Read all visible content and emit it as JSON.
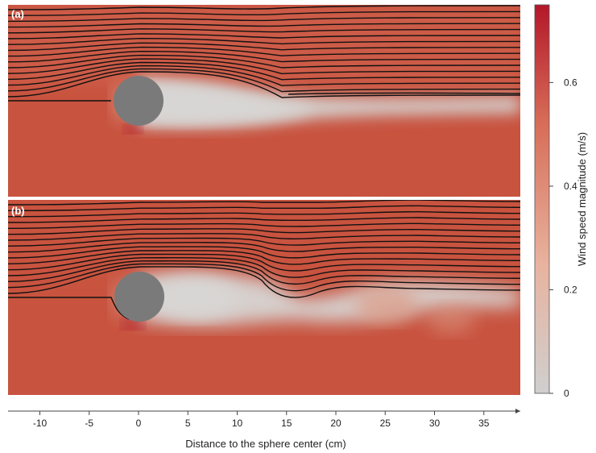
{
  "chart_data": {
    "type": "heatmap",
    "panels": [
      {
        "label": "(a)",
        "wake_streamlines": "smooth",
        "sphere_center_cm": 0,
        "sphere_radius_cm": 2.5
      },
      {
        "label": "(b)",
        "wake_streamlines": "oscillating",
        "sphere_center_cm": 0,
        "sphere_radius_cm": 2.5
      }
    ],
    "xlabel": "Distance to the sphere center (cm)",
    "x_ticks": [
      -10,
      -5,
      0,
      5,
      10,
      15,
      20,
      25,
      30,
      35
    ],
    "xlim": [
      -13.5,
      38
    ],
    "colorbar": {
      "label": "Wind speed magnitude (m/s)",
      "ticks": [
        0,
        0.2,
        0.4,
        0.6
      ],
      "range": [
        0,
        0.75
      ],
      "colors": [
        "#cfcfcf",
        "#e8b39f",
        "#d76c57",
        "#b3172a"
      ]
    }
  },
  "colors": {
    "free_stream": "#c7523e",
    "wake": "#cfcfcf",
    "sphere": "#7a7a7a",
    "streamline": "#111111"
  }
}
